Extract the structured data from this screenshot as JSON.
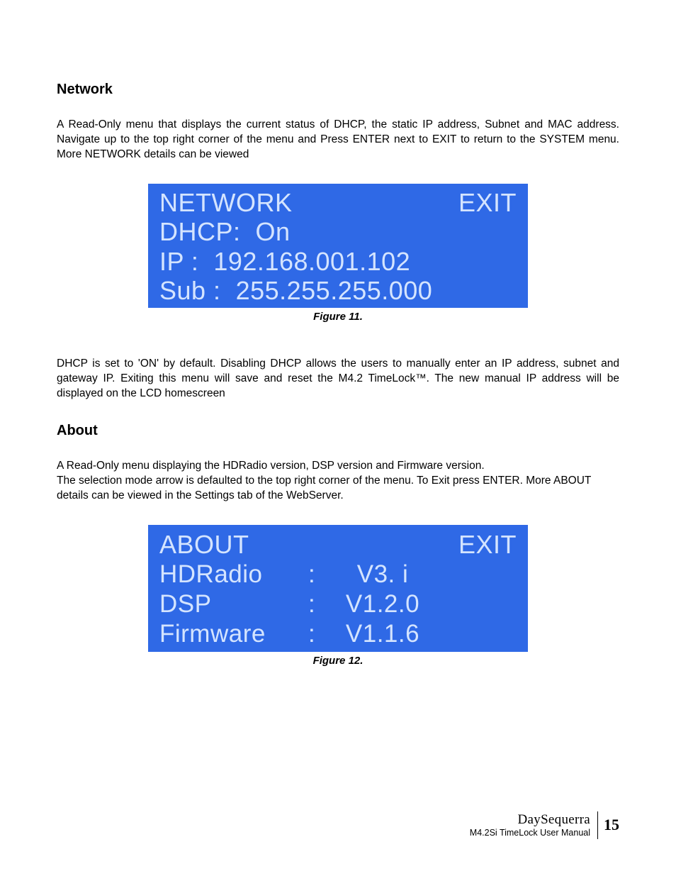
{
  "sections": {
    "network": {
      "heading": "Network",
      "para1": "A Read-Only menu that displays the current status of DHCP, the static IP address, Subnet and MAC address.  Navigate up to the top right corner of the menu and Press ENTER next to EXIT to return to the SYSTEM menu.  More NETWORK details can be viewed",
      "para2": "DHCP is set to 'ON' by default.  Disabling DHCP allows the users to manually enter an IP address, subnet and gateway IP.  Exiting this menu will save and reset the M4.2 TimeLock™.  The new manual IP address will be displayed on the LCD homescreen"
    },
    "about": {
      "heading": "About",
      "para1": "A Read-Only menu displaying the HDRadio version, DSP version and Firmware version.\nThe selection mode arrow is defaulted to the top right corner of the menu.  To Exit press ENTER.  More ABOUT details can be viewed in the Settings tab of the WebServer."
    }
  },
  "lcd": {
    "network": {
      "title": "NETWORK",
      "exit": "EXIT",
      "dhcp_line": "DHCP:  On",
      "ip_line": "IP :  192.168.001.102",
      "sub_line": "Sub :  255.255.255.000",
      "bg_color": "#2f69e6",
      "text_color": "#d4e4ff",
      "font_size": 36
    },
    "about": {
      "title": "ABOUT",
      "exit": "EXIT",
      "rows": [
        {
          "label": "HDRadio",
          "colon": ":",
          "value": "V3. i"
        },
        {
          "label": "DSP",
          "colon": ":",
          "value": "V1.2.0"
        },
        {
          "label": "Firmware",
          "colon": ":",
          "value": "V1.1.6"
        }
      ],
      "bg_color": "#2f69e6",
      "text_color": "#d4e4ff",
      "font_size": 35
    }
  },
  "captions": {
    "fig11": "Figure 11.",
    "fig12": "Figure 12."
  },
  "footer": {
    "brand": "DaySequerra",
    "subtitle": "M4.2Si TimeLock User Manual",
    "page": "15"
  }
}
